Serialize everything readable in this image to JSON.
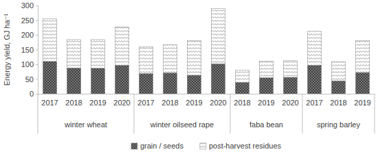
{
  "chart_data": {
    "type": "bar",
    "stacked": true,
    "grid": false,
    "legend": "bottom",
    "y_label": "Energy yield, GJ ha⁻¹",
    "categories": [
      {
        "group": "winter wheat",
        "label": "2017"
      },
      {
        "group": "winter wheat",
        "label": "2018"
      },
      {
        "group": "winter wheat",
        "label": "2019"
      },
      {
        "group": "winter wheat",
        "label": "2020"
      },
      {
        "group": "winter oilseed rape",
        "label": "2017"
      },
      {
        "group": "winter oilseed rape",
        "label": "2018"
      },
      {
        "group": "winter oilseed rape",
        "label": "2019"
      },
      {
        "group": "winter oilseed rape",
        "label": "2020"
      },
      {
        "group": "faba bean",
        "label": "2018"
      },
      {
        "group": "faba bean",
        "label": "2019"
      },
      {
        "group": "faba bean",
        "label": "2020"
      },
      {
        "group": "spring barley",
        "label": "2017"
      },
      {
        "group": "spring barley",
        "label": "2018"
      },
      {
        "group": "spring barley",
        "label": "2019"
      }
    ],
    "series": [
      {
        "name": "grain / seeds",
        "color": "#404040",
        "values": [
          110,
          88,
          87,
          97,
          69,
          71,
          63,
          102,
          39,
          55,
          56,
          97,
          44,
          72
        ]
      },
      {
        "name": "post-harvest residues",
        "color": "#ffffff",
        "values": [
          145,
          96,
          97,
          130,
          90,
          96,
          117,
          187,
          41,
          55,
          56,
          115,
          65,
          108
        ]
      }
    ],
    "ylim": [
      0,
      300
    ],
    "yticks": [
      0,
      50,
      100,
      150,
      200,
      250,
      300
    ]
  }
}
